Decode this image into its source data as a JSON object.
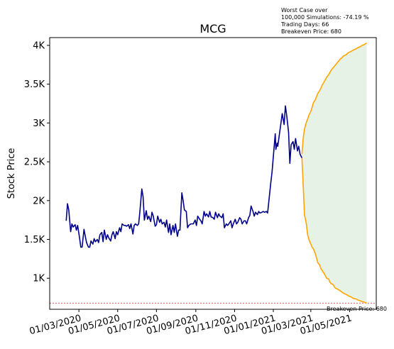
{
  "chart_data": {
    "type": "line",
    "title": "MCG",
    "xlabel": "",
    "ylabel": "Stock Price",
    "ylim": [
      600,
      4100
    ],
    "xlim": [
      "2020-01-15",
      "2021-06-12"
    ],
    "y_ticks": [
      {
        "value": 1000,
        "label": "1K"
      },
      {
        "value": 1500,
        "label": "1.5K"
      },
      {
        "value": 2000,
        "label": "2K"
      },
      {
        "value": 2500,
        "label": "2.5K"
      },
      {
        "value": 3000,
        "label": "3K"
      },
      {
        "value": 3500,
        "label": "3.5K"
      },
      {
        "value": 4000,
        "label": "4K"
      }
    ],
    "x_ticks": [
      {
        "date": "2020-03-01",
        "label": "01/03/2020"
      },
      {
        "date": "2020-05-01",
        "label": "01/05/2020"
      },
      {
        "date": "2020-07-01",
        "label": "01/07/2020"
      },
      {
        "date": "2020-09-01",
        "label": "01/09/2020"
      },
      {
        "date": "2020-11-01",
        "label": "01/11/2020"
      },
      {
        "date": "2021-01-01",
        "label": "01/01/2021"
      },
      {
        "date": "2021-03-01",
        "label": "01/03/2021"
      },
      {
        "date": "2021-05-01",
        "label": "01/05/2021"
      }
    ],
    "annotation_lines": [
      "Worst Case over",
      "100,000 Simulations: -74.19 %",
      "Trading Days: 66",
      "Breakeven Price: 680"
    ],
    "breakeven": {
      "value": 680,
      "label": "Breakeven Price: 680",
      "color": "#d62728"
    },
    "series": [
      {
        "color": "#00008b",
        "points": [
          [
            "2020-02-10",
            1740
          ],
          [
            "2020-02-12",
            1960
          ],
          [
            "2020-02-14",
            1880
          ],
          [
            "2020-02-17",
            1600
          ],
          [
            "2020-02-19",
            1700
          ],
          [
            "2020-02-21",
            1660
          ],
          [
            "2020-02-24",
            1690
          ],
          [
            "2020-02-26",
            1620
          ],
          [
            "2020-02-28",
            1680
          ],
          [
            "2020-03-02",
            1520
          ],
          [
            "2020-03-04",
            1400
          ],
          [
            "2020-03-06",
            1400
          ],
          [
            "2020-03-09",
            1630
          ],
          [
            "2020-03-11",
            1540
          ],
          [
            "2020-03-13",
            1460
          ],
          [
            "2020-03-16",
            1400
          ],
          [
            "2020-03-18",
            1400
          ],
          [
            "2020-03-20",
            1480
          ],
          [
            "2020-03-23",
            1440
          ],
          [
            "2020-03-25",
            1510
          ],
          [
            "2020-03-27",
            1470
          ],
          [
            "2020-03-30",
            1500
          ],
          [
            "2020-04-01",
            1460
          ],
          [
            "2020-04-03",
            1560
          ],
          [
            "2020-04-06",
            1590
          ],
          [
            "2020-04-08",
            1470
          ],
          [
            "2020-04-10",
            1620
          ],
          [
            "2020-04-13",
            1500
          ],
          [
            "2020-04-15",
            1560
          ],
          [
            "2020-04-17",
            1520
          ],
          [
            "2020-04-20",
            1480
          ],
          [
            "2020-04-22",
            1560
          ],
          [
            "2020-04-24",
            1600
          ],
          [
            "2020-04-27",
            1510
          ],
          [
            "2020-04-29",
            1600
          ],
          [
            "2020-05-01",
            1560
          ],
          [
            "2020-05-04",
            1650
          ],
          [
            "2020-05-06",
            1600
          ],
          [
            "2020-05-08",
            1700
          ],
          [
            "2020-05-11",
            1680
          ],
          [
            "2020-05-13",
            1680
          ],
          [
            "2020-05-15",
            1670
          ],
          [
            "2020-05-18",
            1690
          ],
          [
            "2020-05-20",
            1640
          ],
          [
            "2020-05-22",
            1700
          ],
          [
            "2020-05-25",
            1570
          ],
          [
            "2020-05-27",
            1680
          ],
          [
            "2020-05-29",
            1700
          ],
          [
            "2020-06-01",
            1680
          ],
          [
            "2020-06-03",
            1700
          ],
          [
            "2020-06-05",
            1860
          ],
          [
            "2020-06-08",
            2150
          ],
          [
            "2020-06-10",
            2050
          ],
          [
            "2020-06-12",
            1750
          ],
          [
            "2020-06-15",
            1870
          ],
          [
            "2020-06-17",
            1760
          ],
          [
            "2020-06-19",
            1800
          ],
          [
            "2020-06-22",
            1730
          ],
          [
            "2020-06-24",
            1850
          ],
          [
            "2020-06-26",
            1800
          ],
          [
            "2020-06-29",
            1670
          ],
          [
            "2020-07-01",
            1690
          ],
          [
            "2020-07-03",
            1800
          ],
          [
            "2020-07-06",
            1720
          ],
          [
            "2020-07-08",
            1760
          ],
          [
            "2020-07-10",
            1700
          ],
          [
            "2020-07-13",
            1720
          ],
          [
            "2020-07-15",
            1660
          ],
          [
            "2020-07-17",
            1750
          ],
          [
            "2020-07-20",
            1590
          ],
          [
            "2020-07-22",
            1700
          ],
          [
            "2020-07-24",
            1560
          ],
          [
            "2020-07-27",
            1680
          ],
          [
            "2020-07-29",
            1590
          ],
          [
            "2020-07-31",
            1700
          ],
          [
            "2020-08-03",
            1540
          ],
          [
            "2020-08-05",
            1620
          ],
          [
            "2020-08-07",
            1620
          ],
          [
            "2020-08-10",
            2100
          ],
          [
            "2020-08-12",
            2000
          ],
          [
            "2020-08-14",
            1880
          ],
          [
            "2020-08-17",
            1860
          ],
          [
            "2020-08-19",
            1650
          ],
          [
            "2020-08-21",
            1680
          ],
          [
            "2020-08-24",
            1700
          ],
          [
            "2020-08-26",
            1700
          ],
          [
            "2020-08-28",
            1700
          ],
          [
            "2020-08-31",
            1750
          ],
          [
            "2020-09-02",
            1680
          ],
          [
            "2020-09-04",
            1800
          ],
          [
            "2020-09-07",
            1760
          ],
          [
            "2020-09-09",
            1740
          ],
          [
            "2020-09-11",
            1700
          ],
          [
            "2020-09-14",
            1860
          ],
          [
            "2020-09-16",
            1800
          ],
          [
            "2020-09-18",
            1830
          ],
          [
            "2020-09-21",
            1790
          ],
          [
            "2020-09-23",
            1860
          ],
          [
            "2020-09-25",
            1790
          ],
          [
            "2020-09-28",
            1780
          ],
          [
            "2020-09-30",
            1760
          ],
          [
            "2020-10-02",
            1850
          ],
          [
            "2020-10-05",
            1780
          ],
          [
            "2020-10-07",
            1830
          ],
          [
            "2020-10-09",
            1800
          ],
          [
            "2020-10-12",
            1780
          ],
          [
            "2020-10-14",
            1830
          ],
          [
            "2020-10-16",
            1650
          ],
          [
            "2020-10-19",
            1700
          ],
          [
            "2020-10-21",
            1680
          ],
          [
            "2020-10-23",
            1700
          ],
          [
            "2020-10-26",
            1740
          ],
          [
            "2020-10-28",
            1650
          ],
          [
            "2020-10-30",
            1700
          ],
          [
            "2020-11-02",
            1760
          ],
          [
            "2020-11-04",
            1700
          ],
          [
            "2020-11-06",
            1720
          ],
          [
            "2020-11-09",
            1780
          ],
          [
            "2020-11-11",
            1760
          ],
          [
            "2020-11-13",
            1700
          ],
          [
            "2020-11-16",
            1740
          ],
          [
            "2020-11-18",
            1740
          ],
          [
            "2020-11-20",
            1700
          ],
          [
            "2020-11-23",
            1780
          ],
          [
            "2020-11-25",
            1810
          ],
          [
            "2020-11-27",
            1930
          ],
          [
            "2020-11-30",
            1860
          ],
          [
            "2020-12-02",
            1800
          ],
          [
            "2020-12-04",
            1850
          ],
          [
            "2020-12-07",
            1820
          ],
          [
            "2020-12-09",
            1860
          ],
          [
            "2020-12-11",
            1840
          ],
          [
            "2020-12-14",
            1850
          ],
          [
            "2020-12-16",
            1860
          ],
          [
            "2020-12-18",
            1850
          ],
          [
            "2020-12-21",
            1860
          ],
          [
            "2020-12-23",
            1840
          ],
          [
            "2020-12-28",
            2230
          ],
          [
            "2020-12-30",
            2370
          ],
          [
            "2021-01-04",
            2860
          ],
          [
            "2021-01-05",
            2660
          ],
          [
            "2021-01-07",
            2740
          ],
          [
            "2021-01-08",
            2700
          ],
          [
            "2021-01-11",
            2880
          ],
          [
            "2021-01-13",
            3000
          ],
          [
            "2021-01-15",
            3120
          ],
          [
            "2021-01-18",
            2980
          ],
          [
            "2021-01-20",
            3220
          ],
          [
            "2021-01-22",
            3100
          ],
          [
            "2021-01-25",
            2880
          ],
          [
            "2021-01-27",
            2480
          ],
          [
            "2021-01-29",
            2720
          ],
          [
            "2021-02-01",
            2760
          ],
          [
            "2021-02-03",
            2660
          ],
          [
            "2021-02-05",
            2800
          ],
          [
            "2021-02-08",
            2640
          ],
          [
            "2021-02-10",
            2700
          ],
          [
            "2021-02-12",
            2600
          ],
          [
            "2021-02-15",
            2550
          ]
        ]
      }
    ],
    "simulation": {
      "color": "#ffa500",
      "fill": "#e6f2e6",
      "upper": [
        [
          "2021-02-15",
          2600
        ],
        [
          "2021-02-17",
          2800
        ],
        [
          "2021-02-19",
          2920
        ],
        [
          "2021-02-22",
          3010
        ],
        [
          "2021-02-24",
          3050
        ],
        [
          "2021-02-26",
          3100
        ],
        [
          "2021-03-01",
          3150
        ],
        [
          "2021-03-03",
          3200
        ],
        [
          "2021-03-05",
          3260
        ],
        [
          "2021-03-08",
          3300
        ],
        [
          "2021-03-10",
          3340
        ],
        [
          "2021-03-12",
          3380
        ],
        [
          "2021-03-15",
          3420
        ],
        [
          "2021-03-17",
          3450
        ],
        [
          "2021-03-19",
          3490
        ],
        [
          "2021-03-22",
          3530
        ],
        [
          "2021-03-24",
          3560
        ],
        [
          "2021-03-26",
          3590
        ],
        [
          "2021-03-29",
          3620
        ],
        [
          "2021-03-31",
          3650
        ],
        [
          "2021-04-02",
          3680
        ],
        [
          "2021-04-05",
          3710
        ],
        [
          "2021-04-07",
          3730
        ],
        [
          "2021-04-09",
          3750
        ],
        [
          "2021-04-12",
          3780
        ],
        [
          "2021-04-14",
          3800
        ],
        [
          "2021-04-16",
          3820
        ],
        [
          "2021-04-19",
          3840
        ],
        [
          "2021-04-21",
          3860
        ],
        [
          "2021-04-23",
          3870
        ],
        [
          "2021-04-26",
          3880
        ],
        [
          "2021-04-28",
          3900
        ],
        [
          "2021-04-30",
          3910
        ],
        [
          "2021-05-03",
          3920
        ],
        [
          "2021-05-05",
          3930
        ],
        [
          "2021-05-07",
          3940
        ],
        [
          "2021-05-10",
          3950
        ],
        [
          "2021-05-12",
          3960
        ],
        [
          "2021-05-14",
          3970
        ],
        [
          "2021-05-17",
          3980
        ],
        [
          "2021-05-19",
          3990
        ],
        [
          "2021-05-21",
          4000
        ],
        [
          "2021-05-24",
          4010
        ],
        [
          "2021-05-26",
          4020
        ],
        [
          "2021-05-28",
          4030
        ]
      ],
      "lower": [
        [
          "2021-02-15",
          2550
        ],
        [
          "2021-02-17",
          2200
        ],
        [
          "2021-02-19",
          1820
        ],
        [
          "2021-02-22",
          1700
        ],
        [
          "2021-02-24",
          1560
        ],
        [
          "2021-02-26",
          1500
        ],
        [
          "2021-03-01",
          1440
        ],
        [
          "2021-03-03",
          1400
        ],
        [
          "2021-03-05",
          1380
        ],
        [
          "2021-03-08",
          1320
        ],
        [
          "2021-03-10",
          1260
        ],
        [
          "2021-03-12",
          1200
        ],
        [
          "2021-03-15",
          1170
        ],
        [
          "2021-03-17",
          1120
        ],
        [
          "2021-03-19",
          1100
        ],
        [
          "2021-03-22",
          1060
        ],
        [
          "2021-03-24",
          1030
        ],
        [
          "2021-03-26",
          1000
        ],
        [
          "2021-03-29",
          990
        ],
        [
          "2021-03-31",
          950
        ],
        [
          "2021-04-02",
          930
        ],
        [
          "2021-04-05",
          920
        ],
        [
          "2021-04-07",
          890
        ],
        [
          "2021-04-09",
          870
        ],
        [
          "2021-04-12",
          860
        ],
        [
          "2021-04-14",
          850
        ],
        [
          "2021-04-16",
          840
        ],
        [
          "2021-04-19",
          820
        ],
        [
          "2021-04-21",
          810
        ],
        [
          "2021-04-23",
          800
        ],
        [
          "2021-04-26",
          790
        ],
        [
          "2021-04-28",
          780
        ],
        [
          "2021-04-30",
          770
        ],
        [
          "2021-05-03",
          760
        ],
        [
          "2021-05-05",
          750
        ],
        [
          "2021-05-07",
          740
        ],
        [
          "2021-05-10",
          735
        ],
        [
          "2021-05-12",
          730
        ],
        [
          "2021-05-14",
          720
        ],
        [
          "2021-05-17",
          712
        ],
        [
          "2021-05-19",
          705
        ],
        [
          "2021-05-21",
          698
        ],
        [
          "2021-05-24",
          692
        ],
        [
          "2021-05-26",
          686
        ],
        [
          "2021-05-28",
          680
        ]
      ]
    }
  }
}
